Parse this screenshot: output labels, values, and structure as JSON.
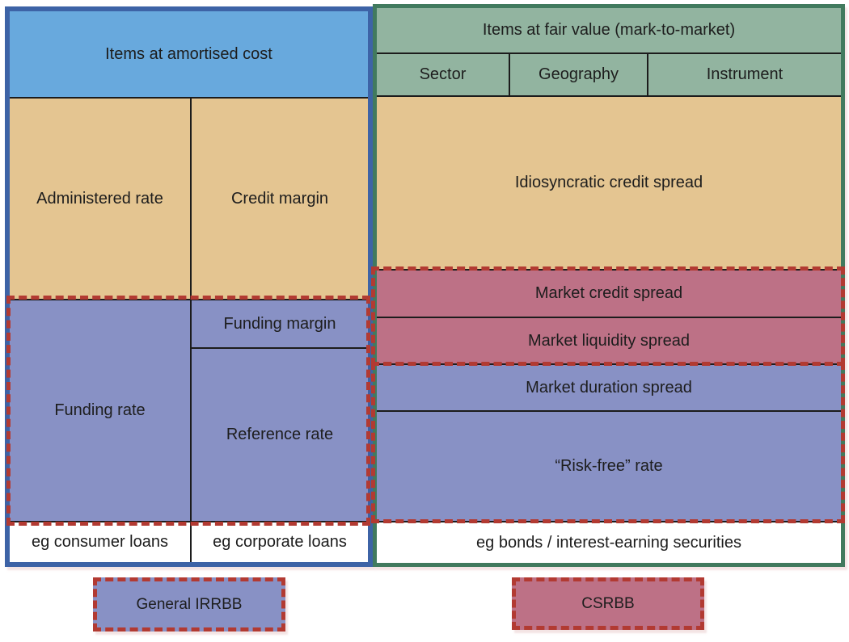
{
  "left_panel": {
    "header": "Items at amortised cost",
    "administered_rate": "Administered rate",
    "credit_margin": "Credit margin",
    "funding_rate": "Funding rate",
    "funding_margin": "Funding margin",
    "reference_rate": "Reference rate",
    "example_consumer": "eg consumer loans",
    "example_corporate": "eg corporate loans"
  },
  "right_panel": {
    "header": "Items at fair value (mark-to-market)",
    "subheaders": [
      "Sector",
      "Geography",
      "Instrument"
    ],
    "idiosyncratic_credit_spread": "Idiosyncratic credit spread",
    "market_credit_spread": "Market credit spread",
    "market_liquidity_spread": "Market liquidity spread",
    "market_duration_spread": "Market duration spread",
    "risk_free_rate": "“Risk-free” rate",
    "example_bonds": "eg bonds / interest-earning securities"
  },
  "legend": {
    "general_irrbb": "General IRRBB",
    "csrbb": "CSRBB"
  },
  "colors": {
    "left_border": "#3d63a6",
    "left_header_fill": "#68a9dd",
    "right_border": "#417a5e",
    "right_header_fill": "#92b4a0",
    "amortised_fill": "#e4c591",
    "rate_fill": "#8891c5",
    "spread_fill": "#bd7186",
    "dashed_red": "#b23a32",
    "line_black": "#1c1c1c"
  }
}
